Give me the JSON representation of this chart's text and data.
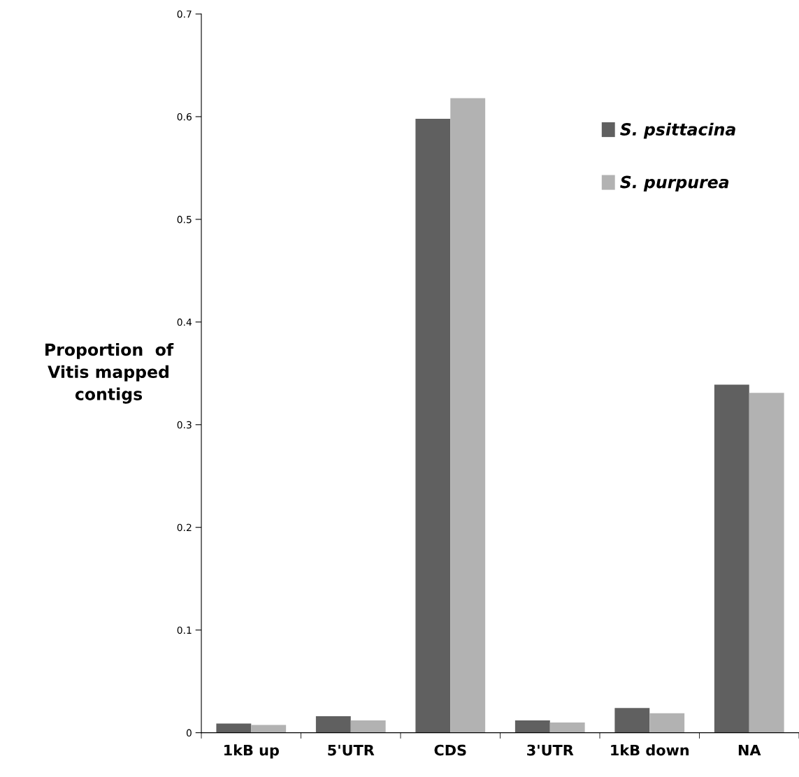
{
  "chart_data": {
    "type": "bar",
    "ylabel": "Proportion  of\nVitis mapped\ncontigs",
    "categories": [
      "1kB up",
      "5'UTR",
      "CDS",
      "3'UTR",
      "1kB down",
      "NA"
    ],
    "series": [
      {
        "name": "S. psittacina",
        "color": "#606060",
        "values": [
          0.009,
          0.016,
          0.598,
          0.012,
          0.024,
          0.339
        ]
      },
      {
        "name": "S. purpurea",
        "color": "#b2b2b2",
        "values": [
          0.0075,
          0.012,
          0.618,
          0.01,
          0.019,
          0.331
        ]
      }
    ],
    "ylim": [
      0,
      0.7
    ],
    "yticks": [
      0,
      0.1,
      0.2,
      0.3,
      0.4,
      0.5,
      0.6,
      0.7
    ],
    "grid": false,
    "legend": "top right"
  }
}
